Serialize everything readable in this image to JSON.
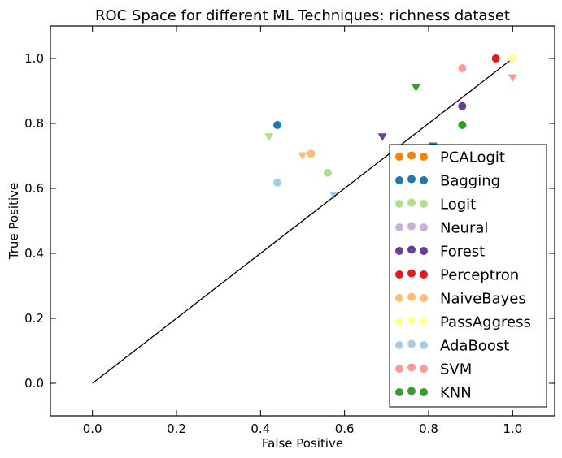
{
  "chart_data": {
    "type": "scatter",
    "title": "ROC Space for different ML Techniques: richness dataset",
    "xlabel": "False Positive",
    "ylabel": "True Positive",
    "xlim": [
      -0.1,
      1.1
    ],
    "ylim": [
      -0.1,
      1.1
    ],
    "xticks": [
      "0.0",
      "0.2",
      "0.4",
      "0.6",
      "0.8",
      "1.0"
    ],
    "yticks": [
      "0.0",
      "0.2",
      "0.4",
      "0.6",
      "0.8",
      "1.0"
    ],
    "grid": false,
    "legend_position": "lower-right",
    "diagonal": {
      "from": [
        0,
        0
      ],
      "to": [
        1,
        1
      ],
      "color": "#000000"
    },
    "series": [
      {
        "name": "PCALogit",
        "color": "#ff7f00",
        "circle": [],
        "triangle": []
      },
      {
        "name": "Bagging",
        "color": "#1f78b4",
        "circle": [
          [
            0.44,
            0.795
          ]
        ],
        "triangle": [
          [
            0.81,
            0.73
          ]
        ]
      },
      {
        "name": "Logit",
        "color": "#b2df8a",
        "circle": [
          [
            0.56,
            0.648
          ]
        ],
        "triangle": [
          [
            0.42,
            0.758
          ]
        ]
      },
      {
        "name": "Neural",
        "color": "#cab2d6",
        "circle": [],
        "triangle": []
      },
      {
        "name": "Forest",
        "color": "#6a3d9a",
        "circle": [
          [
            0.88,
            0.853
          ]
        ],
        "triangle": [
          [
            0.69,
            0.758
          ]
        ]
      },
      {
        "name": "Perceptron",
        "color": "#e31a1c",
        "circle": [
          [
            0.96,
            1.0
          ]
        ],
        "triangle": []
      },
      {
        "name": "NaiveBayes",
        "color": "#fdbf6f",
        "circle": [
          [
            0.52,
            0.707
          ]
        ],
        "triangle": [
          [
            0.5,
            0.7
          ]
        ]
      },
      {
        "name": "PassAggress",
        "color": "#ffff99",
        "circle": [
          [
            1.0,
            1.0
          ]
        ],
        "triangle": [
          [
            1.0,
            1.0
          ]
        ]
      },
      {
        "name": "AdaBoost",
        "color": "#a6cee3",
        "circle": [
          [
            0.44,
            0.618
          ]
        ],
        "triangle": [
          [
            0.575,
            0.578
          ]
        ]
      },
      {
        "name": "SVM",
        "color": "#fb9a99",
        "circle": [
          [
            0.88,
            0.97
          ]
        ],
        "triangle": [
          [
            1.0,
            0.94
          ]
        ]
      },
      {
        "name": "KNN",
        "color": "#33a02c",
        "circle": [
          [
            0.88,
            0.795
          ]
        ],
        "triangle": [
          [
            0.77,
            0.91
          ]
        ]
      }
    ]
  }
}
